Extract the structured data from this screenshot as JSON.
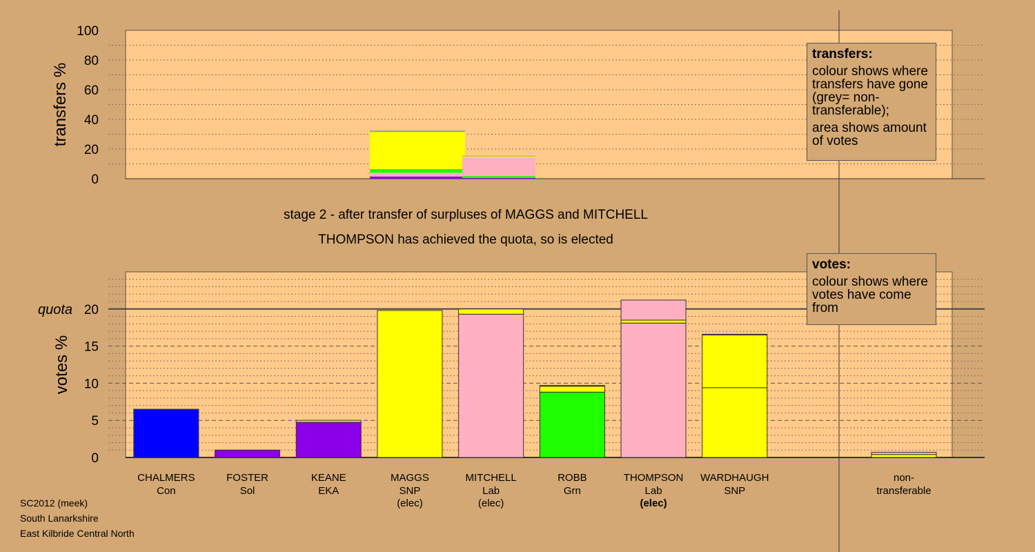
{
  "captions": {
    "stage": "stage 2 - after transfer of surpluses of MAGGS and MITCHELL",
    "result": "THOMPSON has achieved the quota, so is elected"
  },
  "transfers_key": {
    "title": "transfers:",
    "para1": "colour shows where transfers have gone (grey= non-transferable);",
    "para2": "area shows amount of votes"
  },
  "votes_key": {
    "title": "votes:",
    "para1": "colour shows where votes have come from"
  },
  "footer": {
    "line1": "SC2012 (meek)",
    "line2": "South Lanarkshire",
    "line3": "East Kilbride Central North"
  },
  "colors": {
    "background": "#d4a874",
    "plot": "#ffca8a",
    "Con": "#0000ff",
    "Sol": "#8b00e8",
    "EKA": "#8b00e8",
    "SNP": "#ffff00",
    "Lab": "#ffb0c0",
    "Grn": "#1eff00",
    "nontransferable": "#a0a0a0"
  },
  "chart_data": [
    {
      "type": "bar",
      "stacked": true,
      "ylabel": "transfers %",
      "ylim": [
        0,
        100
      ],
      "yticks": [
        0,
        20,
        40,
        60,
        80,
        100
      ],
      "grid": "dotted",
      "sources": [
        {
          "name": "MAGGS",
          "segments": [
            {
              "party": "EKA",
              "value": 1.5
            },
            {
              "party": "Lab",
              "value": 2.5
            },
            {
              "party": "Grn",
              "value": 2.5
            },
            {
              "party": "SNP",
              "value": 25.0
            },
            {
              "party": "nontransferable",
              "value": 1.0
            }
          ]
        },
        {
          "name": "MITCHELL",
          "segments": [
            {
              "party": "EKA",
              "value": 0.5
            },
            {
              "party": "Grn",
              "value": 1.3
            },
            {
              "party": "Lab",
              "value": 12.5
            },
            {
              "party": "SNP",
              "value": 0.7
            },
            {
              "party": "nontransferable",
              "value": 0.5
            }
          ]
        }
      ]
    },
    {
      "type": "bar",
      "stacked": true,
      "ylabel": "votes %",
      "ylim": [
        0,
        25
      ],
      "yticks": [
        0,
        5,
        10,
        15,
        20
      ],
      "quota": 20,
      "quota_label": "quota",
      "grid": "dashed",
      "candidates": [
        {
          "name": "CHALMERS",
          "party": "Con",
          "status": "",
          "segments": [
            {
              "party": "Con",
              "value": 6.5
            }
          ],
          "total": 6.5
        },
        {
          "name": "FOSTER",
          "party": "Sol",
          "status": "",
          "segments": [
            {
              "party": "Sol",
              "value": 1.0
            }
          ],
          "total": 1.0
        },
        {
          "name": "KEANE",
          "party": "EKA",
          "status": "",
          "segments": [
            {
              "party": "EKA",
              "value": 4.75
            },
            {
              "party": "SNP",
              "value": 0.25
            }
          ],
          "total": 5.0
        },
        {
          "name": "MAGGS",
          "party": "SNP",
          "status": "(elec)",
          "segments": [
            {
              "party": "SNP",
              "value": 19.8
            }
          ],
          "total": 19.8
        },
        {
          "name": "MITCHELL",
          "party": "Lab",
          "status": "(elec)",
          "segments": [
            {
              "party": "Lab",
              "value": 19.3
            },
            {
              "party": "SNP",
              "value": 0.7
            }
          ],
          "total": 20.0
        },
        {
          "name": "ROBB",
          "party": "Grn",
          "status": "",
          "segments": [
            {
              "party": "Grn",
              "value": 8.8
            },
            {
              "party": "SNP",
              "value": 0.8
            },
            {
              "party": "Lab",
              "value": 0.1
            }
          ],
          "total": 9.7
        },
        {
          "name": "THOMPSON",
          "party": "Lab",
          "status": "(elec)",
          "segments": [
            {
              "party": "Lab",
              "value": 18.1
            },
            {
              "party": "SNP",
              "value": 0.4
            },
            {
              "party": "Lab",
              "value": 2.7
            }
          ],
          "total": 21.2
        },
        {
          "name": "WARDHAUGH",
          "party": "SNP",
          "status": "",
          "segments": [
            {
              "party": "SNP",
              "value": 9.4
            },
            {
              "party": "SNP",
              "value": 7.1
            },
            {
              "party": "Lab",
              "value": 0.1
            }
          ],
          "total": 16.6
        }
      ],
      "nontransferable": {
        "label": "non-transferable",
        "segments": [
          {
            "party": "SNP",
            "value": 0.4
          },
          {
            "party": "Lab",
            "value": 0.3
          }
        ],
        "total": 0.7
      }
    }
  ]
}
